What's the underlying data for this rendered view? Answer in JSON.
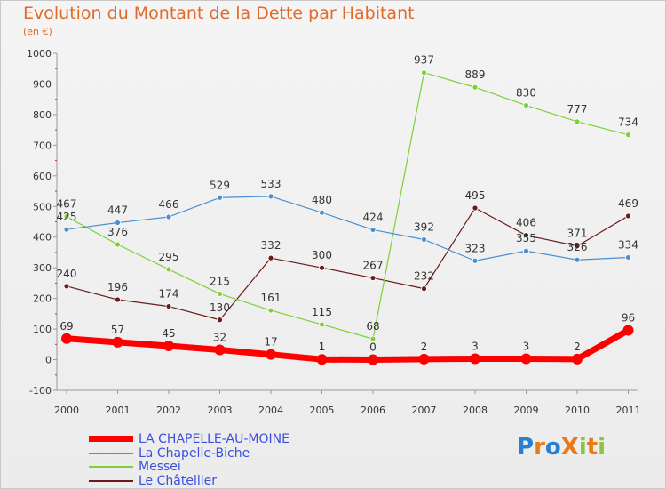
{
  "title": "Evolution du Montant de la Dette par Habitant",
  "unit": "(en €)",
  "logo": "ProXiti",
  "chart_data": {
    "type": "line",
    "title": "Evolution du Montant de la Dette par Habitant",
    "subtitle": "(en €)",
    "x": [
      "2000",
      "2001",
      "2002",
      "2003",
      "2004",
      "2005",
      "2006",
      "2007",
      "2008",
      "2009",
      "2010",
      "2011"
    ],
    "ylim": [
      -100,
      1000
    ],
    "yticks": [
      "-100",
      "0",
      "100",
      "200",
      "300",
      "400",
      "500",
      "600",
      "700",
      "800",
      "900",
      "1000"
    ],
    "grid": false,
    "legend_position": "bottom-left",
    "series": [
      {
        "name": "LA CHAPELLE-AU-MOINE",
        "color": "#ff0000",
        "values": [
          69,
          57,
          45,
          32,
          17,
          1,
          0,
          2,
          3,
          3,
          2,
          96
        ]
      },
      {
        "name": "La Chapelle-Biche",
        "color": "#4a90d0",
        "values": [
          425,
          447,
          466,
          529,
          533,
          480,
          424,
          392,
          323,
          355,
          326,
          334
        ]
      },
      {
        "name": "Messei",
        "color": "#7ed03a",
        "values": [
          467,
          376,
          295,
          215,
          161,
          115,
          68,
          937,
          889,
          830,
          777,
          734
        ]
      },
      {
        "name": "Le Châtellier",
        "color": "#6b1a1a",
        "values": [
          240,
          196,
          174,
          130,
          332,
          300,
          267,
          232,
          495,
          406,
          371,
          469
        ]
      }
    ]
  }
}
